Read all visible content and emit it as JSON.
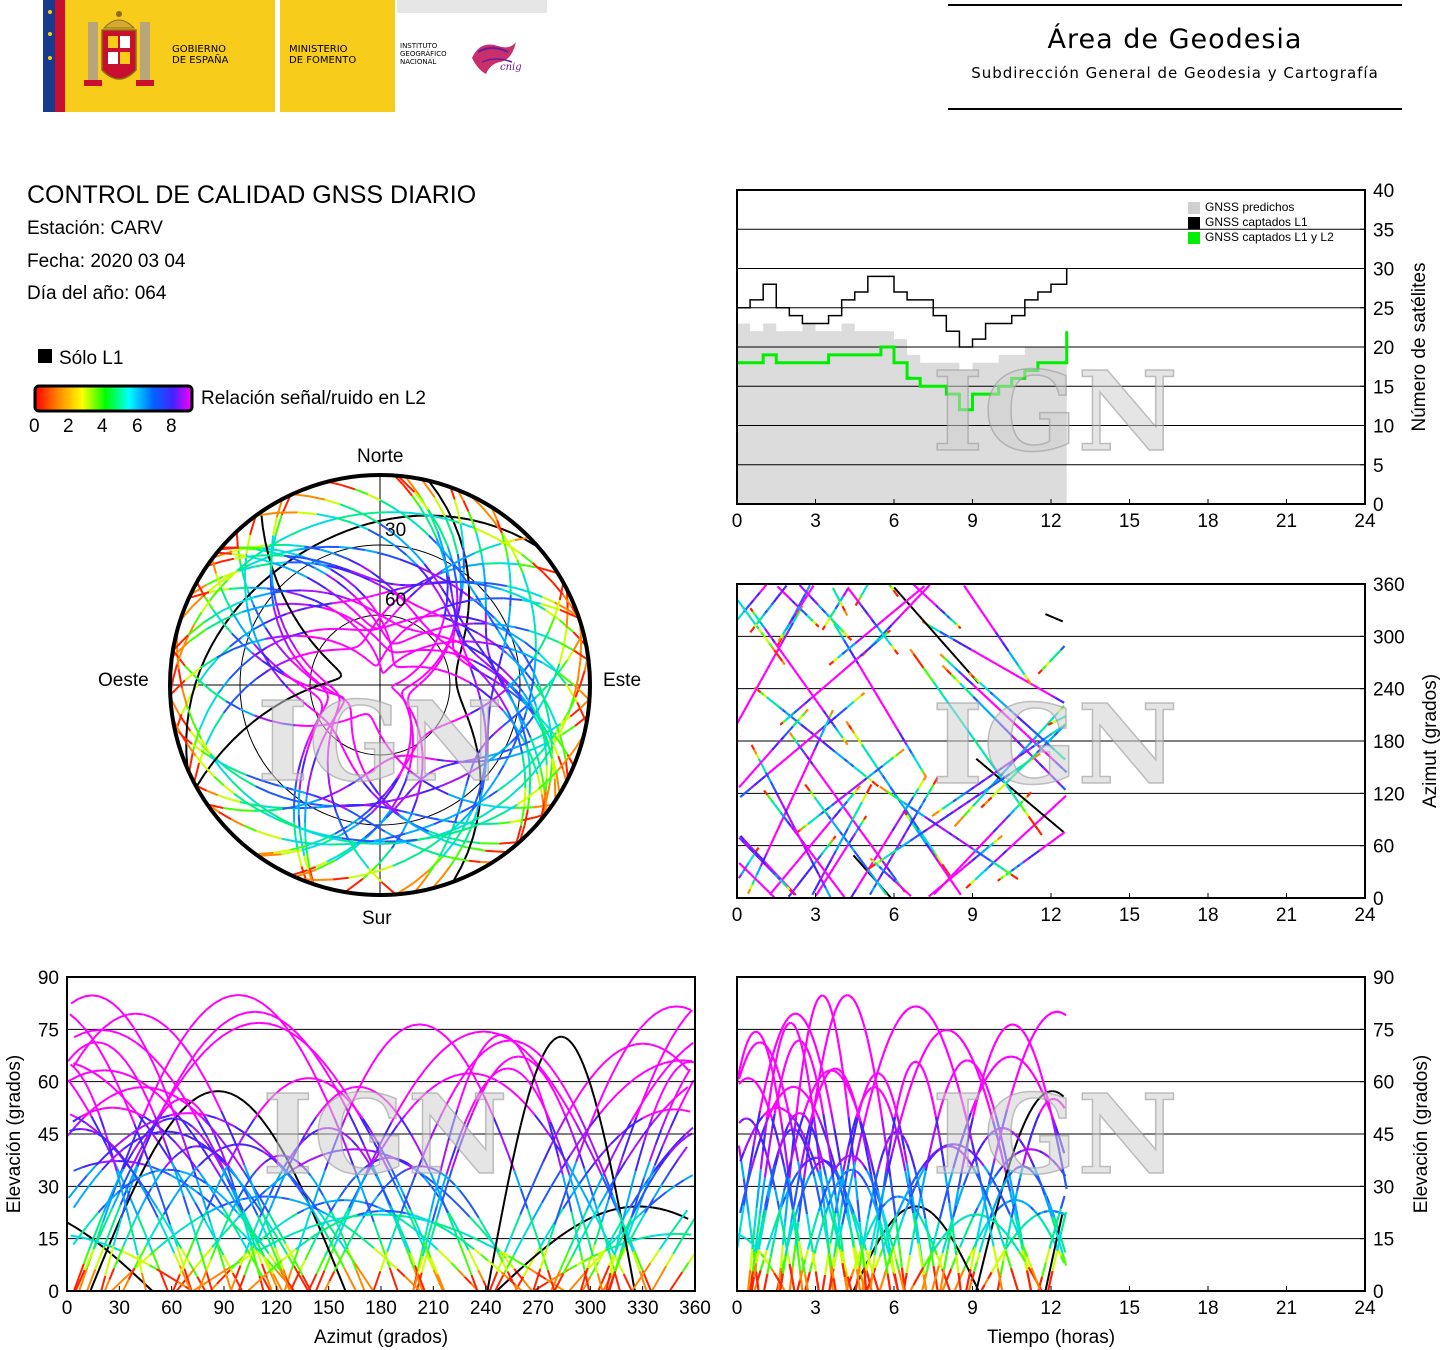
{
  "header": {
    "gov_line1": "GOBIERNO",
    "gov_line2": "DE ESPAÑA",
    "min_line1": "MINISTERIO",
    "min_line2": "DE FOMENTO",
    "ign_line1": "INSTITUTO",
    "ign_line2": "GEOGRÁFICO",
    "ign_line3": "NACIONAL",
    "cnig": "cnig",
    "area_title": "Área de Geodesia",
    "area_subtitle": "Subdirección General de Geodesia y Cartografía",
    "colors": {
      "logo_yellow": "#f8cc1b",
      "flag_red": "#c8102e",
      "eu_blue": "#153c8c",
      "cnig_magenta": "#c2185b"
    }
  },
  "info": {
    "title": "CONTROL DE CALIDAD GNSS DIARIO",
    "station": "Estación: CARV",
    "date": "Fecha: 2020 03 04",
    "doy": "Día del año: 064"
  },
  "legend": {
    "l1_only": "Sólo L1",
    "snr_label": "Relación señal/ruido en L2",
    "snr_ticks": [
      "0",
      "2",
      "4",
      "6",
      "8"
    ]
  },
  "watermark": "IGN",
  "chart_data": [
    {
      "type": "line",
      "name": "satellite-count",
      "x_range": [
        0,
        24
      ],
      "y_range": [
        0,
        40
      ],
      "x_ticks": [
        "0",
        "3",
        "6",
        "9",
        "12",
        "15",
        "18",
        "21",
        "24"
      ],
      "y_ticks": [
        "0",
        "5",
        "10",
        "15",
        "20",
        "25",
        "30",
        "35",
        "40"
      ],
      "ylabel": "Número de satélites",
      "legend_entries": [
        "GNSS predichos",
        "GNSS captados L1",
        "GNSS captados L1 y L2"
      ],
      "legend_position": "top-right",
      "grid": "horizontal",
      "series": [
        {
          "name": "GNSS predichos",
          "color": "#dcdcdc",
          "x": [
            0,
            0.5,
            1,
            1.5,
            2,
            2.5,
            3,
            3.5,
            4,
            4.5,
            5,
            5.5,
            6,
            6.5,
            7,
            7.5,
            8,
            8.5,
            9,
            9.5,
            10,
            10.5,
            11,
            11.5,
            12,
            12.6
          ],
          "values": [
            23,
            22,
            23,
            22,
            22,
            23,
            22,
            22,
            23,
            22,
            22,
            22,
            21,
            19,
            18,
            18,
            18,
            17,
            18,
            18,
            19,
            19,
            20,
            20,
            20,
            21
          ]
        },
        {
          "name": "GNSS captados L1",
          "color": "#000000",
          "x": [
            0,
            0.5,
            1,
            1.5,
            2,
            2.5,
            3,
            3.5,
            4,
            4.5,
            5,
            5.5,
            6,
            6.5,
            7,
            7.5,
            8,
            8.5,
            9,
            9.5,
            10,
            10.5,
            11,
            11.5,
            12,
            12.6
          ],
          "values": [
            25,
            26,
            28,
            25,
            24,
            23,
            23,
            24,
            26,
            27,
            29,
            29,
            27,
            26,
            26,
            24,
            22,
            20,
            21,
            23,
            23,
            24,
            26,
            27,
            28,
            30
          ]
        },
        {
          "name": "GNSS captados L1 y L2",
          "color": "#00ee00",
          "x": [
            0,
            0.5,
            1,
            1.5,
            2,
            2.5,
            3,
            3.5,
            4,
            4.5,
            5,
            5.5,
            6,
            6.5,
            7,
            7.5,
            8,
            8.5,
            9,
            9.5,
            10,
            10.5,
            11,
            11.5,
            12,
            12.6
          ],
          "values": [
            18,
            18,
            19,
            18,
            18,
            18,
            18,
            19,
            19,
            19,
            19,
            20,
            18,
            16,
            15,
            15,
            14,
            12,
            14,
            14,
            15,
            16,
            17,
            18,
            18,
            22
          ]
        }
      ]
    },
    {
      "type": "scatter",
      "name": "azimuth-vs-time",
      "x_range": [
        0,
        24
      ],
      "y_range": [
        0,
        360
      ],
      "x_ticks": [
        "0",
        "3",
        "6",
        "9",
        "12",
        "15",
        "18",
        "21",
        "24"
      ],
      "y_ticks": [
        "0",
        "60",
        "120",
        "180",
        "240",
        "300",
        "360"
      ],
      "ylabel": "Azimut (grados)",
      "grid": "horizontal",
      "color_scale": "SNR L2 (0-8): red-yellow-green-cyan-blue-magenta; black = L1 only"
    },
    {
      "type": "scatter",
      "name": "elevation-vs-azimuth",
      "x_range": [
        0,
        360
      ],
      "y_range": [
        0,
        90
      ],
      "x_ticks": [
        "0",
        "30",
        "60",
        "90",
        "120",
        "150",
        "180",
        "210",
        "240",
        "270",
        "300",
        "330",
        "360"
      ],
      "y_ticks": [
        "0",
        "15",
        "30",
        "45",
        "60",
        "75",
        "90"
      ],
      "xlabel": "Azimut (grados)",
      "ylabel": "Elevación (grados)",
      "grid": "horizontal"
    },
    {
      "type": "scatter",
      "name": "elevation-vs-time",
      "x_range": [
        0,
        24
      ],
      "y_range": [
        0,
        90
      ],
      "x_ticks": [
        "0",
        "3",
        "6",
        "9",
        "12",
        "15",
        "18",
        "21",
        "24"
      ],
      "y_ticks": [
        "0",
        "15",
        "30",
        "45",
        "60",
        "75",
        "90"
      ],
      "xlabel": "Tiempo (horas)",
      "ylabel": "Elevación (grados)",
      "grid": "horizontal"
    },
    {
      "type": "scatter",
      "name": "skyplot",
      "directions": {
        "north": "Norte",
        "south": "Sur",
        "east": "Este",
        "west": "Oeste"
      },
      "ring_labels": [
        "30",
        "60"
      ]
    }
  ]
}
